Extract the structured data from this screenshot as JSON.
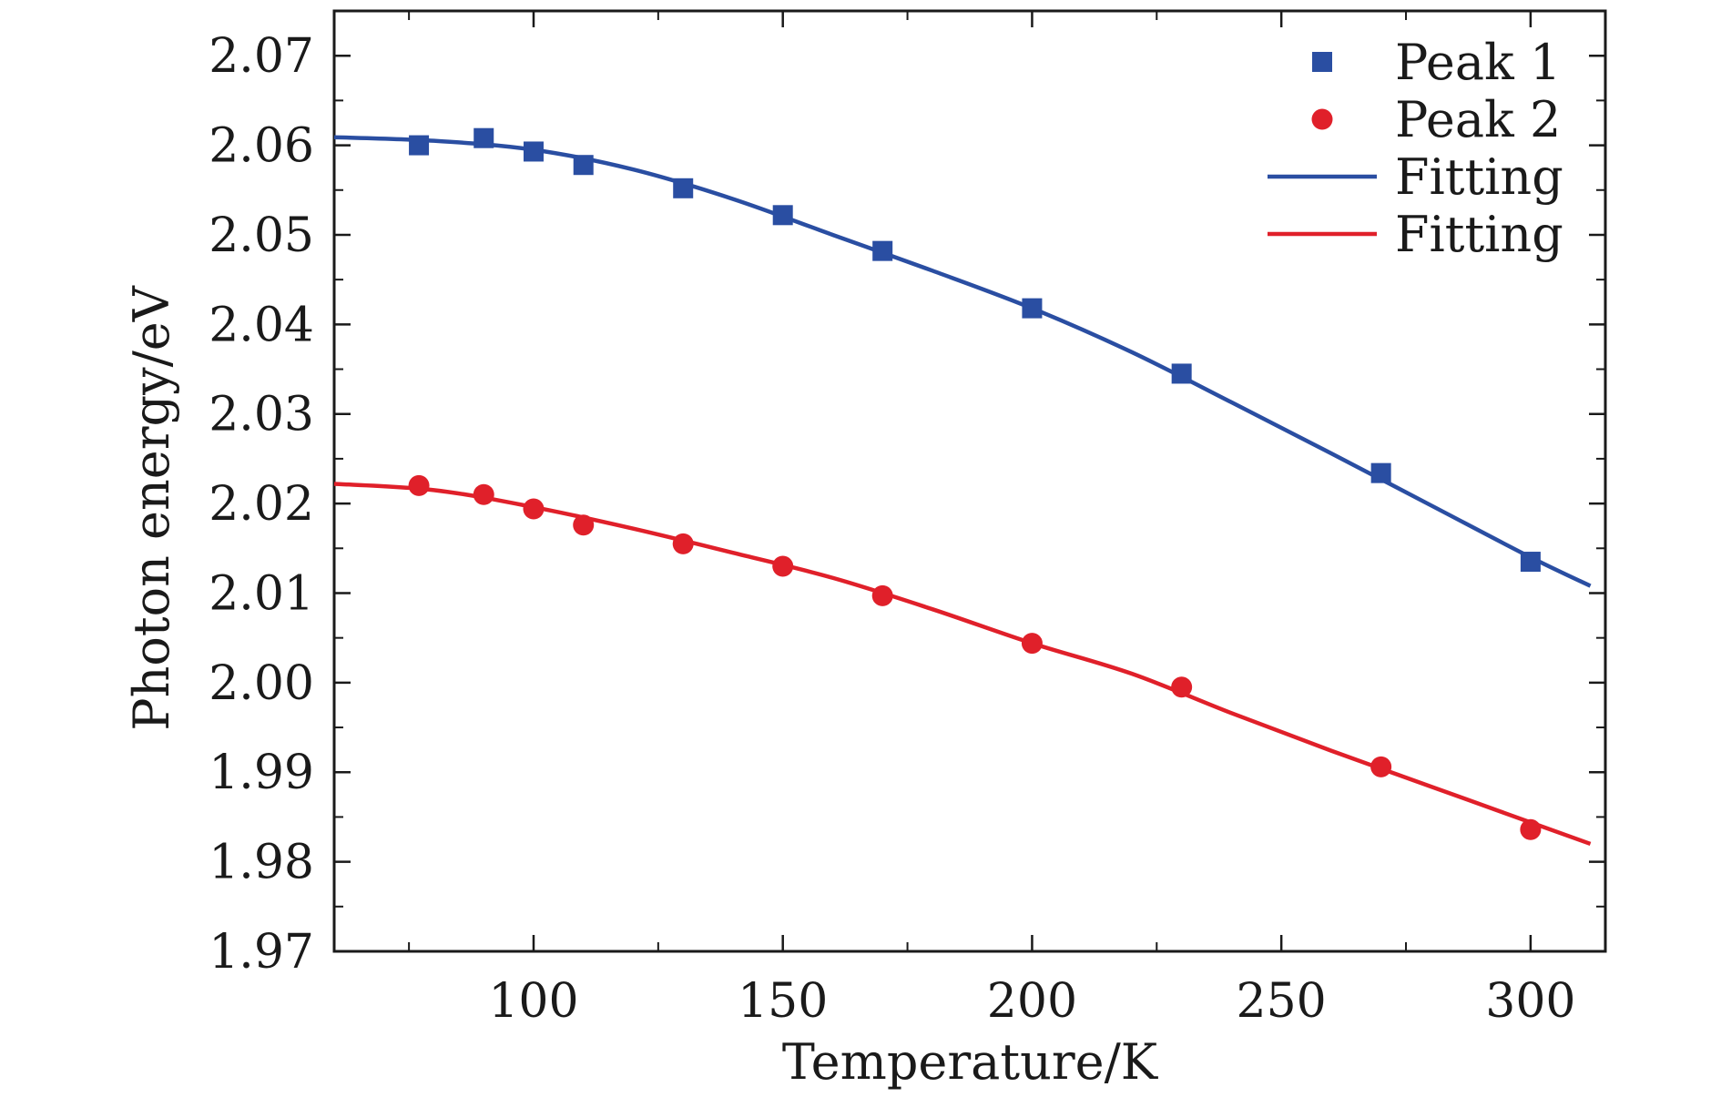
{
  "chart_data": {
    "type": "scatter",
    "xlabel": "Temperature/K",
    "ylabel": "Photon energy/eV",
    "xlim": [
      60,
      315
    ],
    "ylim": [
      1.97,
      2.075
    ],
    "x_ticks": [
      100,
      150,
      200,
      250,
      300
    ],
    "x_tick_labels": [
      "100",
      "150",
      "200",
      "250",
      "300"
    ],
    "y_ticks": [
      1.97,
      1.98,
      1.99,
      2.0,
      2.01,
      2.02,
      2.03,
      2.04,
      2.05,
      2.06,
      2.07
    ],
    "y_tick_labels": [
      "1.97",
      "1.98",
      "1.99",
      "2.00",
      "2.01",
      "2.02",
      "2.03",
      "2.04",
      "2.05",
      "2.06",
      "2.07"
    ],
    "grid": false,
    "legend_position": "top-right",
    "series": [
      {
        "name": "Peak 1",
        "kind": "scatter",
        "marker": "square",
        "color": "#2a4ea2",
        "x": [
          77,
          90,
          100,
          110,
          130,
          150,
          170,
          200,
          230,
          270,
          300
        ],
        "y": [
          2.06,
          2.0608,
          2.0593,
          2.0578,
          2.0552,
          2.0522,
          2.0482,
          2.0418,
          2.0345,
          2.0234,
          2.0135
        ]
      },
      {
        "name": "Peak 2",
        "kind": "scatter",
        "marker": "circle",
        "color": "#e0202a",
        "x": [
          77,
          90,
          100,
          110,
          130,
          150,
          170,
          200,
          230,
          270,
          300
        ],
        "y": [
          2.022,
          2.021,
          2.0194,
          2.0176,
          2.0155,
          2.013,
          2.0097,
          2.0044,
          1.9995,
          1.9906,
          1.9836
        ]
      },
      {
        "name": "Fitting",
        "kind": "line",
        "color": "#2a4ea2",
        "x": [
          60,
          80,
          100,
          120,
          140,
          160,
          180,
          200,
          220,
          240,
          260,
          280,
          300,
          312
        ],
        "y": [
          2.0609,
          2.0605,
          2.0595,
          2.0573,
          2.054,
          2.05,
          2.046,
          2.0418,
          2.0369,
          2.0313,
          2.0256,
          2.0198,
          2.014,
          2.0108
        ]
      },
      {
        "name": "Fitting",
        "kind": "line",
        "color": "#e0202a",
        "x": [
          60,
          80,
          100,
          120,
          140,
          160,
          180,
          200,
          220,
          240,
          260,
          280,
          300,
          312
        ],
        "y": [
          2.0222,
          2.0215,
          2.0196,
          2.0172,
          2.0145,
          2.0117,
          2.0082,
          2.0044,
          2.001,
          1.9966,
          1.9924,
          1.9884,
          1.9844,
          1.982
        ]
      }
    ]
  }
}
